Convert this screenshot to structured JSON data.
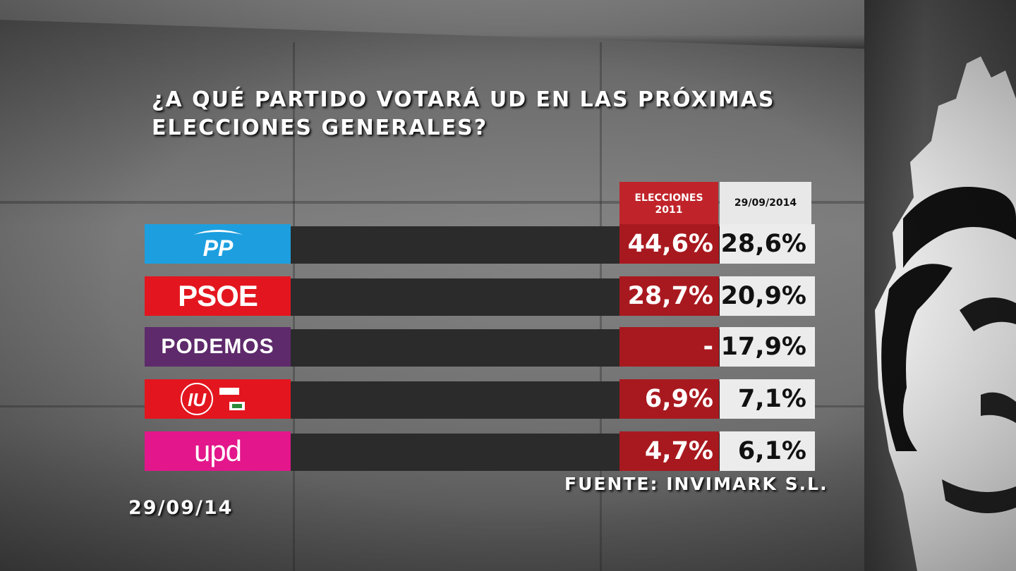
{
  "chart_data": {
    "type": "table",
    "title": "¿A QUÉ PARTIDO VOTARÁ UD EN LAS PRÓXIMAS ELECCIONES GENERALES?",
    "title_lines": [
      "¿A QUÉ PARTIDO VOTARÁ UD EN LAS PRÓXIMAS",
      "ELECCIONES GENERALES?"
    ],
    "columns": [
      "ELECCIONES 2011",
      "29/09/2014"
    ],
    "column_lines": [
      [
        "ELECCIONES",
        "2011"
      ],
      [
        "29/09/2014"
      ]
    ],
    "categories": [
      "PP",
      "PSOE",
      "PODEMOS",
      "IU",
      "upd"
    ],
    "series": [
      {
        "name": "ELECCIONES 2011",
        "values": [
          44.6,
          28.7,
          null,
          6.9,
          4.7
        ],
        "labels": [
          "44,6%",
          "28,7%",
          "-",
          "6,9%",
          "4,7%"
        ]
      },
      {
        "name": "29/09/2014",
        "values": [
          28.6,
          20.9,
          17.9,
          7.1,
          6.1
        ],
        "labels": [
          "28,6%",
          "20,9%",
          "17,9%",
          "7,1%",
          "6,1%"
        ]
      }
    ],
    "source": "FUENTE: INVIMARK S.L.",
    "date": "29/09/14"
  },
  "parties": [
    {
      "key": "pp",
      "label": "PP",
      "color": "#1d9fdf",
      "icon": "pp-logo"
    },
    {
      "key": "psoe",
      "label": "PSOE",
      "color": "#e3161f",
      "icon": "psoe-logo"
    },
    {
      "key": "podemos",
      "label": "PODEMOS",
      "color": "#5e2a6b",
      "icon": "podemos-logo"
    },
    {
      "key": "iu",
      "label": "IU",
      "color": "#e3161f",
      "icon": "iu-logo"
    },
    {
      "key": "upd",
      "label": "upd",
      "color": "#e3168b",
      "icon": "upd-logo"
    }
  ],
  "colors": {
    "col_2011": "#a8191f",
    "col_2014": "#ececec",
    "bar": "#2b2b2b"
  }
}
